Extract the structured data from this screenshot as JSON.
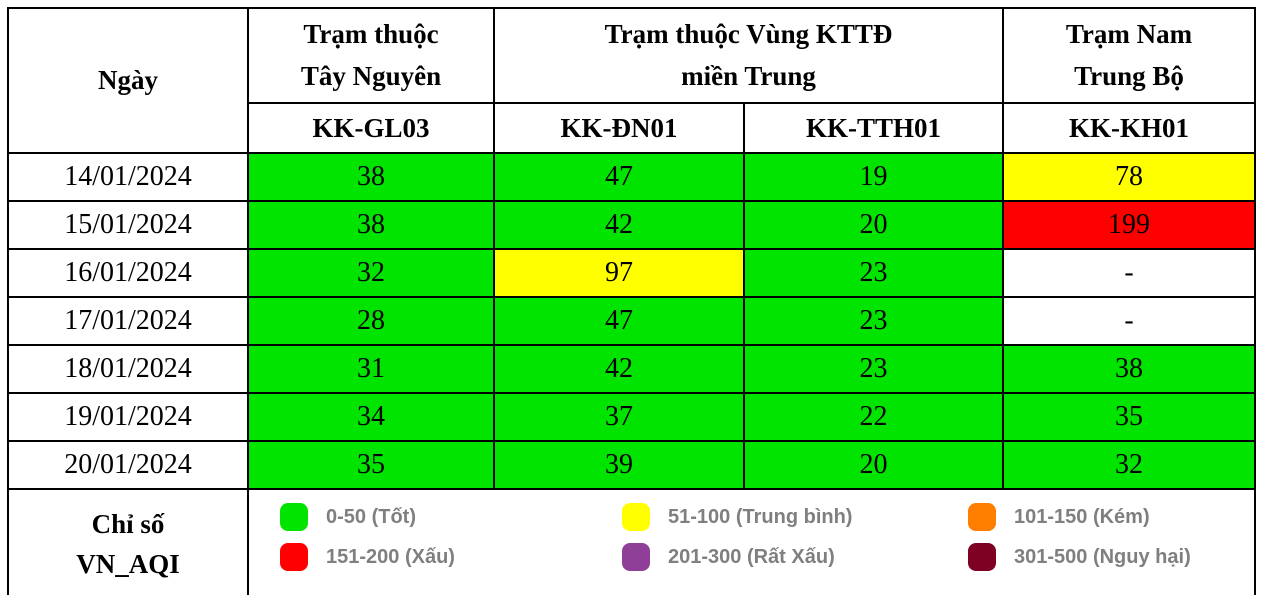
{
  "table": {
    "date_header": "Ngày",
    "groups": [
      {
        "line1": "Trạm thuộc",
        "line2": "Tây Nguyên"
      },
      {
        "line1": "Trạm thuộc Vùng KTTĐ",
        "line2": "miền Trung"
      },
      {
        "line1": "Trạm Nam",
        "line2": "Trung Bộ"
      }
    ],
    "stations": [
      "KK-GL03",
      "KK-ĐN01",
      "KK-TTH01",
      "KK-KH01"
    ],
    "rows": [
      {
        "date": "14/01/2024",
        "values": [
          {
            "value": "38",
            "level": "good"
          },
          {
            "value": "47",
            "level": "good"
          },
          {
            "value": "19",
            "level": "good"
          },
          {
            "value": "78",
            "level": "moderate"
          }
        ]
      },
      {
        "date": "15/01/2024",
        "values": [
          {
            "value": "38",
            "level": "good"
          },
          {
            "value": "42",
            "level": "good"
          },
          {
            "value": "20",
            "level": "good"
          },
          {
            "value": "199",
            "level": "bad"
          }
        ]
      },
      {
        "date": "16/01/2024",
        "values": [
          {
            "value": "32",
            "level": "good"
          },
          {
            "value": "97",
            "level": "moderate"
          },
          {
            "value": "23",
            "level": "good"
          },
          {
            "value": "-",
            "level": "none"
          }
        ]
      },
      {
        "date": "17/01/2024",
        "values": [
          {
            "value": "28",
            "level": "good"
          },
          {
            "value": "47",
            "level": "good"
          },
          {
            "value": "23",
            "level": "good"
          },
          {
            "value": "-",
            "level": "none"
          }
        ]
      },
      {
        "date": "18/01/2024",
        "values": [
          {
            "value": "31",
            "level": "good"
          },
          {
            "value": "42",
            "level": "good"
          },
          {
            "value": "23",
            "level": "good"
          },
          {
            "value": "38",
            "level": "good"
          }
        ]
      },
      {
        "date": "19/01/2024",
        "values": [
          {
            "value": "34",
            "level": "good"
          },
          {
            "value": "37",
            "level": "good"
          },
          {
            "value": "22",
            "level": "good"
          },
          {
            "value": "35",
            "level": "good"
          }
        ]
      },
      {
        "date": "20/01/2024",
        "values": [
          {
            "value": "35",
            "level": "good"
          },
          {
            "value": "39",
            "level": "good"
          },
          {
            "value": "20",
            "level": "good"
          },
          {
            "value": "32",
            "level": "good"
          }
        ]
      }
    ]
  },
  "aqi_colors": {
    "good": "#00e400",
    "moderate": "#ffff00",
    "poor": "#ff7e00",
    "bad": "#ff0000",
    "very_bad": "#8f3f97",
    "hazardous": "#7e0023",
    "none": "#ffffff"
  },
  "legend": {
    "title_line1": "Chỉ số",
    "title_line2": "VN_AQI",
    "columns": [
      [
        {
          "label": "0-50 (Tốt)",
          "color": "#00e400"
        },
        {
          "label": "151-200 (Xấu)",
          "color": "#ff0000"
        }
      ],
      [
        {
          "label": "51-100 (Trung bình)",
          "color": "#ffff00"
        },
        {
          "label": "201-300 (Rất Xấu)",
          "color": "#8f3f97"
        }
      ],
      [
        {
          "label": "101-150 (Kém)",
          "color": "#ff7e00"
        },
        {
          "label": "301-500 (Nguy hại)",
          "color": "#7e0023"
        }
      ]
    ]
  },
  "chart_data": {
    "type": "table",
    "title": "Chỉ số VN_AQI",
    "categories": [
      "14/01/2024",
      "15/01/2024",
      "16/01/2024",
      "17/01/2024",
      "18/01/2024",
      "19/01/2024",
      "20/01/2024"
    ],
    "series": [
      {
        "name": "KK-GL03",
        "group": "Trạm thuộc Tây Nguyên",
        "values": [
          38,
          38,
          32,
          28,
          31,
          34,
          35
        ]
      },
      {
        "name": "KK-ĐN01",
        "group": "Trạm thuộc Vùng KTTĐ miền Trung",
        "values": [
          47,
          42,
          97,
          47,
          42,
          37,
          39
        ]
      },
      {
        "name": "KK-TTH01",
        "group": "Trạm thuộc Vùng KTTĐ miền Trung",
        "values": [
          19,
          20,
          23,
          23,
          23,
          22,
          20
        ]
      },
      {
        "name": "KK-KH01",
        "group": "Trạm Nam Trung Bộ",
        "values": [
          78,
          199,
          null,
          null,
          38,
          35,
          32
        ]
      }
    ],
    "legend_entries": [
      "0-50 (Tốt)",
      "51-100 (Trung bình)",
      "101-150 (Kém)",
      "151-200 (Xấu)",
      "201-300 (Rất Xấu)",
      "301-500 (Nguy hại)"
    ],
    "cell_color_rule": "VN_AQI bands: 0-50 green #00e400, 51-100 yellow #ffff00, 101-150 orange #ff7e00, 151-200 red #ff0000, 201-300 purple #8f3f97, 301-500 maroon #7e0023"
  }
}
